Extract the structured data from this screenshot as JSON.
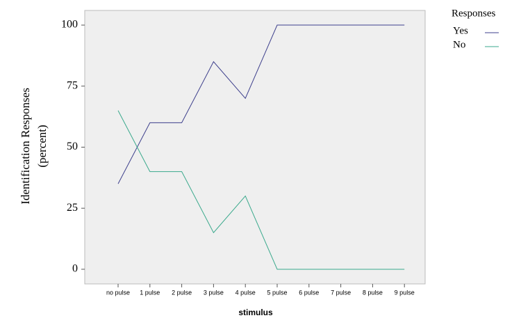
{
  "chart_data": {
    "type": "line",
    "x_label": "stimulus",
    "y_label": [
      "Identification Responses",
      "(percent)"
    ],
    "categories": [
      "no pulse",
      "1 pulse",
      "2 pulse",
      "3 pulse",
      "4 pulse",
      "5 pulse",
      "6 pulse",
      "7 pulse",
      "8 pulse",
      "9 pulse"
    ],
    "series": [
      {
        "name": "Yes",
        "color": "#3d3f8c",
        "values": [
          35,
          60,
          60,
          85,
          70,
          100,
          100,
          100,
          100,
          100
        ]
      },
      {
        "name": "No",
        "color": "#3aa98c",
        "values": [
          65,
          40,
          40,
          15,
          30,
          0,
          0,
          0,
          0,
          0
        ]
      }
    ],
    "legend_title": "Responses",
    "ylim": [
      -6,
      106
    ],
    "yticks": [
      0,
      25,
      50,
      75,
      100
    ]
  }
}
